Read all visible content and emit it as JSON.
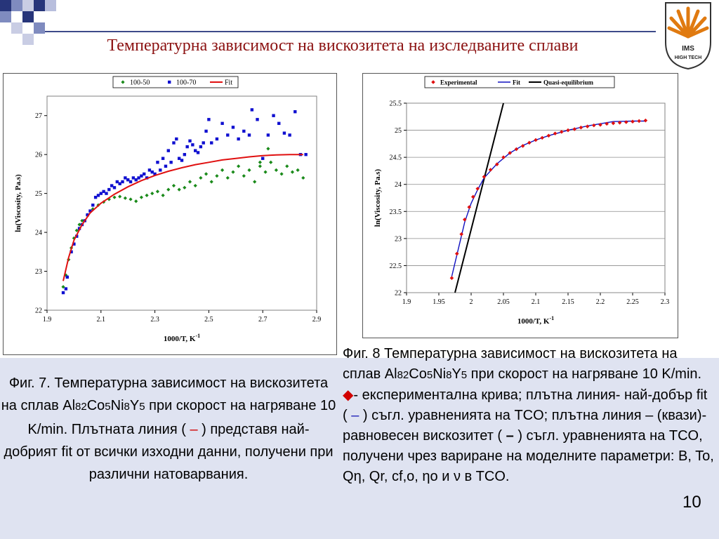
{
  "title": "Температурна зависимост на вискозитета на изследваните сплави",
  "logo": {
    "text_top": "IMS",
    "text_bottom": "HIGH TECH",
    "color": "#e07a10"
  },
  "fig7": {
    "caption_parts": {
      "p1": "Фиг. 7. Температурна зависимост на вискозитета на сплав Al",
      "sub1": "82",
      "el2": "Co",
      "sub2": "5",
      "el3": "Ni",
      "sub3": "8",
      "el4": "Y",
      "sub4": "5",
      "p2": " при скорост на нагряване 10 K/min. Плътната линия ( ",
      "dash": "–",
      "p3": " ) представя най- добрият fit от всички изходни данни, получени при различни натоварвания."
    }
  },
  "fig8": {
    "caption_parts": {
      "p1": "Фиг. 8 Температурна зависимост на вискозитета на сплав Al",
      "sub1": "82",
      "el2": "Co",
      "sub2": "5",
      "el3": "Ni",
      "sub3": "8",
      "el4": "Y",
      "sub4": "5",
      "p2": " при скорост на нагряване 10 K/min.",
      "diamond": "◆",
      "p3": "- експериментална крива; плътна линия- най-добър fit ( ",
      "dash1": "–",
      "p4": " ) съгл. уравненията на TCO; плътна линия – (квази)-равновесен вискозитет ( ",
      "dash2": "–",
      "p5": " ) съгл. уравненията на TCO, получени чрез вариране на моделните параметри: B, To, Q",
      "eta1": "η",
      "p6": ", Qr, cf,o, ",
      "eta2": "η",
      "p7": "o и ",
      "nu": "ν",
      "p8": " в TCO."
    }
  },
  "page_number": "10",
  "chart_data": [
    {
      "type": "scatter",
      "title": "",
      "xlabel": "1000/T, K",
      "xlabel_sup": "-1",
      "ylabel": "ln(Viscosity, Pa.s)",
      "xlim": [
        1.9,
        2.9
      ],
      "ylim": [
        22,
        27.5
      ],
      "xticks": [
        "1.9",
        "2.1",
        "2.3",
        "2.5",
        "2.7",
        "2.9"
      ],
      "yticks": [
        "22",
        "23",
        "24",
        "25",
        "26",
        "27"
      ],
      "legend": [
        "100-50",
        "100-70",
        "Fit"
      ],
      "legend_position": "top-center",
      "colors": {
        "s1": "#1a8a1a",
        "s2": "#1010d0",
        "fit": "#e01010"
      },
      "series": [
        {
          "name": "100-50",
          "marker": "diamond",
          "points": [
            [
              1.96,
              22.6
            ],
            [
              1.97,
              22.9
            ],
            [
              1.98,
              23.3
            ],
            [
              1.99,
              23.6
            ],
            [
              2.0,
              23.85
            ],
            [
              2.01,
              24.05
            ],
            [
              2.02,
              24.2
            ],
            [
              2.03,
              24.3
            ],
            [
              2.05,
              24.45
            ],
            [
              2.07,
              24.6
            ],
            [
              2.09,
              24.7
            ],
            [
              2.11,
              24.78
            ],
            [
              2.13,
              24.85
            ],
            [
              2.15,
              24.9
            ],
            [
              2.17,
              24.92
            ],
            [
              2.19,
              24.88
            ],
            [
              2.21,
              24.85
            ],
            [
              2.23,
              24.8
            ],
            [
              2.25,
              24.9
            ],
            [
              2.27,
              24.95
            ],
            [
              2.29,
              25.0
            ],
            [
              2.31,
              25.05
            ],
            [
              2.33,
              24.95
            ],
            [
              2.35,
              25.1
            ],
            [
              2.37,
              25.2
            ],
            [
              2.39,
              25.1
            ],
            [
              2.41,
              25.15
            ],
            [
              2.43,
              25.3
            ],
            [
              2.45,
              25.2
            ],
            [
              2.47,
              25.4
            ],
            [
              2.49,
              25.5
            ],
            [
              2.51,
              25.3
            ],
            [
              2.53,
              25.45
            ],
            [
              2.55,
              25.6
            ],
            [
              2.57,
              25.4
            ],
            [
              2.59,
              25.55
            ],
            [
              2.61,
              25.7
            ],
            [
              2.63,
              25.45
            ],
            [
              2.65,
              25.6
            ],
            [
              2.67,
              25.3
            ],
            [
              2.69,
              25.7
            ],
            [
              2.71,
              25.55
            ],
            [
              2.73,
              25.8
            ],
            [
              2.75,
              25.6
            ],
            [
              2.77,
              25.5
            ],
            [
              2.79,
              25.7
            ],
            [
              2.81,
              25.55
            ],
            [
              2.83,
              25.6
            ],
            [
              2.85,
              25.4
            ],
            [
              2.72,
              26.15
            ],
            [
              2.69,
              25.8
            ]
          ]
        },
        {
          "name": "100-70",
          "marker": "square",
          "points": [
            [
              1.96,
              22.45
            ],
            [
              1.97,
              22.55
            ],
            [
              1.975,
              22.85
            ],
            [
              1.99,
              23.5
            ],
            [
              2.0,
              23.7
            ],
            [
              2.01,
              23.9
            ],
            [
              2.02,
              24.1
            ],
            [
              2.03,
              24.2
            ],
            [
              2.04,
              24.3
            ],
            [
              2.05,
              24.45
            ],
            [
              2.06,
              24.55
            ],
            [
              2.07,
              24.7
            ],
            [
              2.08,
              24.9
            ],
            [
              2.09,
              24.95
            ],
            [
              2.1,
              25.0
            ],
            [
              2.11,
              25.05
            ],
            [
              2.12,
              25.0
            ],
            [
              2.13,
              25.1
            ],
            [
              2.14,
              25.2
            ],
            [
              2.15,
              25.15
            ],
            [
              2.16,
              25.3
            ],
            [
              2.17,
              25.25
            ],
            [
              2.18,
              25.3
            ],
            [
              2.19,
              25.4
            ],
            [
              2.2,
              25.35
            ],
            [
              2.21,
              25.3
            ],
            [
              2.22,
              25.4
            ],
            [
              2.23,
              25.35
            ],
            [
              2.24,
              25.4
            ],
            [
              2.25,
              25.45
            ],
            [
              2.26,
              25.5
            ],
            [
              2.27,
              25.4
            ],
            [
              2.28,
              25.6
            ],
            [
              2.29,
              25.55
            ],
            [
              2.3,
              25.5
            ],
            [
              2.31,
              25.8
            ],
            [
              2.32,
              25.6
            ],
            [
              2.33,
              25.9
            ],
            [
              2.34,
              25.7
            ],
            [
              2.35,
              26.1
            ],
            [
              2.36,
              25.8
            ],
            [
              2.37,
              26.3
            ],
            [
              2.38,
              26.4
            ],
            [
              2.39,
              25.9
            ],
            [
              2.4,
              25.85
            ],
            [
              2.41,
              26.0
            ],
            [
              2.42,
              26.2
            ],
            [
              2.43,
              26.35
            ],
            [
              2.44,
              26.25
            ],
            [
              2.45,
              26.1
            ],
            [
              2.46,
              26.05
            ],
            [
              2.47,
              26.2
            ],
            [
              2.48,
              26.3
            ],
            [
              2.49,
              26.6
            ],
            [
              2.5,
              26.9
            ],
            [
              2.51,
              26.3
            ],
            [
              2.53,
              26.4
            ],
            [
              2.55,
              26.8
            ],
            [
              2.57,
              26.5
            ],
            [
              2.59,
              26.7
            ],
            [
              2.61,
              26.4
            ],
            [
              2.63,
              26.6
            ],
            [
              2.65,
              26.5
            ],
            [
              2.66,
              27.15
            ],
            [
              2.68,
              26.9
            ],
            [
              2.7,
              25.9
            ],
            [
              2.72,
              26.5
            ],
            [
              2.74,
              27.0
            ],
            [
              2.76,
              26.8
            ],
            [
              2.78,
              26.55
            ],
            [
              2.8,
              26.5
            ],
            [
              2.82,
              27.1
            ],
            [
              2.84,
              26.0
            ],
            [
              2.86,
              26.0
            ]
          ]
        }
      ],
      "fit": {
        "name": "Fit",
        "points": [
          [
            1.96,
            22.75
          ],
          [
            1.98,
            23.35
          ],
          [
            2.0,
            23.8
          ],
          [
            2.03,
            24.2
          ],
          [
            2.06,
            24.5
          ],
          [
            2.1,
            24.75
          ],
          [
            2.15,
            24.98
          ],
          [
            2.2,
            25.17
          ],
          [
            2.25,
            25.33
          ],
          [
            2.3,
            25.46
          ],
          [
            2.35,
            25.57
          ],
          [
            2.4,
            25.66
          ],
          [
            2.45,
            25.74
          ],
          [
            2.5,
            25.8
          ],
          [
            2.55,
            25.86
          ],
          [
            2.6,
            25.9
          ],
          [
            2.65,
            25.94
          ],
          [
            2.7,
            25.97
          ],
          [
            2.75,
            25.99
          ],
          [
            2.8,
            26.0
          ],
          [
            2.85,
            26.0
          ]
        ]
      }
    },
    {
      "type": "line",
      "title": "",
      "xlabel": "1000/T, K",
      "xlabel_sup": "-1",
      "ylabel": "ln(Viscosity, Pa.s)",
      "xlim": [
        1.9,
        2.3
      ],
      "ylim": [
        22,
        25.5
      ],
      "xticks": [
        "1.9",
        "1.95",
        "2",
        "2.05",
        "2.1",
        "2.15",
        "2.2",
        "2.25",
        "2.3"
      ],
      "yticks": [
        "22",
        "22.5",
        "23",
        "23.5",
        "24",
        "24.5",
        "25",
        "25.5"
      ],
      "legend": [
        "Experimental",
        "Fit",
        "Quasi-equilibrium"
      ],
      "legend_position": "top-center",
      "colors": {
        "exp": "#e01010",
        "fit": "#1010c0",
        "quasi": "#000000"
      },
      "experimental": [
        [
          1.97,
          22.27
        ],
        [
          1.978,
          22.72
        ],
        [
          1.985,
          23.08
        ],
        [
          1.99,
          23.35
        ],
        [
          1.997,
          23.58
        ],
        [
          2.003,
          23.77
        ],
        [
          2.01,
          23.92
        ],
        [
          2.02,
          24.14
        ],
        [
          2.03,
          24.27
        ],
        [
          2.04,
          24.37
        ],
        [
          2.05,
          24.5
        ],
        [
          2.06,
          24.58
        ],
        [
          2.07,
          24.65
        ],
        [
          2.08,
          24.71
        ],
        [
          2.09,
          24.77
        ],
        [
          2.1,
          24.82
        ],
        [
          2.11,
          24.86
        ],
        [
          2.12,
          24.9
        ],
        [
          2.13,
          24.94
        ],
        [
          2.14,
          24.97
        ],
        [
          2.15,
          25.0
        ],
        [
          2.16,
          25.02
        ],
        [
          2.17,
          25.05
        ],
        [
          2.18,
          25.07
        ],
        [
          2.19,
          25.09
        ],
        [
          2.2,
          25.1
        ],
        [
          2.21,
          25.12
        ],
        [
          2.22,
          25.13
        ],
        [
          2.23,
          25.14
        ],
        [
          2.24,
          25.15
        ],
        [
          2.25,
          25.16
        ],
        [
          2.26,
          25.17
        ],
        [
          2.27,
          25.18
        ]
      ],
      "fit": [
        [
          1.97,
          22.3
        ],
        [
          1.98,
          22.8
        ],
        [
          1.99,
          23.3
        ],
        [
          2.0,
          23.65
        ],
        [
          2.01,
          23.9
        ],
        [
          2.02,
          24.12
        ],
        [
          2.04,
          24.38
        ],
        [
          2.06,
          24.58
        ],
        [
          2.08,
          24.72
        ],
        [
          2.1,
          24.82
        ],
        [
          2.12,
          24.9
        ],
        [
          2.15,
          25.0
        ],
        [
          2.18,
          25.08
        ],
        [
          2.2,
          25.12
        ],
        [
          2.22,
          25.16
        ],
        [
          2.25,
          25.17
        ],
        [
          2.27,
          25.17
        ]
      ],
      "quasi": [
        [
          1.975,
          22.0
        ],
        [
          2.05,
          25.5
        ]
      ]
    }
  ]
}
